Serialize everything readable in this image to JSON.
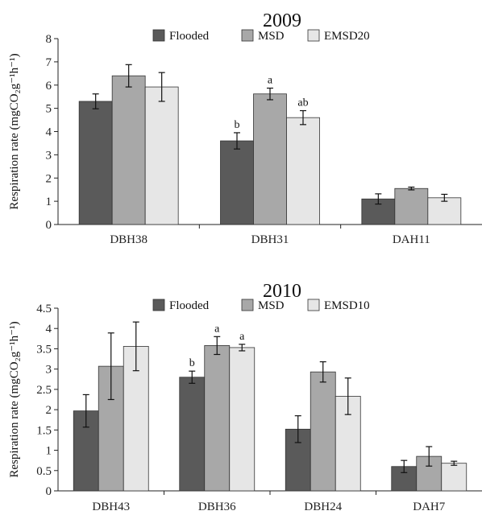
{
  "chart_data": [
    {
      "type": "bar",
      "title": "2009",
      "ylabel": "Respiration rate (mgCO₂g⁻¹h⁻¹)",
      "ylim": [
        0,
        8
      ],
      "yticks": [
        "0",
        "1",
        "2",
        "3",
        "4",
        "5",
        "6",
        "7",
        "8"
      ],
      "categories": [
        "DBH38",
        "DBH31",
        "DAH11"
      ],
      "legend_position": "top",
      "series": [
        {
          "name": "Flooded",
          "color": "#5a5a5a",
          "values": [
            5.3,
            3.6,
            1.1
          ],
          "errors": [
            0.32,
            0.35,
            0.22
          ]
        },
        {
          "name": "MSD",
          "color": "#a8a8a8",
          "values": [
            6.4,
            5.62,
            1.55
          ],
          "errors": [
            0.48,
            0.25,
            0.06
          ]
        },
        {
          "name": "EMSD20",
          "color": "#e6e6e6",
          "values": [
            5.92,
            4.6,
            1.15
          ],
          "errors": [
            0.62,
            0.3,
            0.15
          ]
        }
      ],
      "annotations": [
        {
          "category": 1,
          "series": 0,
          "text": "b"
        },
        {
          "category": 1,
          "series": 1,
          "text": "a"
        },
        {
          "category": 1,
          "series": 2,
          "text": "ab"
        }
      ]
    },
    {
      "type": "bar",
      "title": "2010",
      "ylabel": "Respiration rate (mgCO₂g⁻¹h⁻¹)",
      "ylim": [
        0,
        4.5
      ],
      "yticks": [
        "0",
        "0.5",
        "1",
        "1.5",
        "2",
        "2.5",
        "3",
        "3.5",
        "4",
        "4.5"
      ],
      "categories": [
        "DBH43",
        "DBH36",
        "DBH24",
        "DAH7"
      ],
      "legend_position": "top",
      "series": [
        {
          "name": "Flooded",
          "color": "#5a5a5a",
          "values": [
            1.97,
            2.8,
            1.52,
            0.6
          ],
          "errors": [
            0.4,
            0.15,
            0.33,
            0.15
          ]
        },
        {
          "name": "MSD",
          "color": "#a8a8a8",
          "values": [
            3.07,
            3.58,
            2.93,
            0.85
          ],
          "errors": [
            0.82,
            0.22,
            0.25,
            0.24
          ]
        },
        {
          "name": "EMSD10",
          "color": "#e6e6e6",
          "values": [
            3.56,
            3.53,
            2.33,
            0.68
          ],
          "errors": [
            0.6,
            0.08,
            0.45,
            0.05
          ]
        }
      ],
      "annotations": [
        {
          "category": 1,
          "series": 0,
          "text": "b"
        },
        {
          "category": 1,
          "series": 1,
          "text": "a"
        },
        {
          "category": 1,
          "series": 2,
          "text": "a"
        }
      ]
    }
  ]
}
